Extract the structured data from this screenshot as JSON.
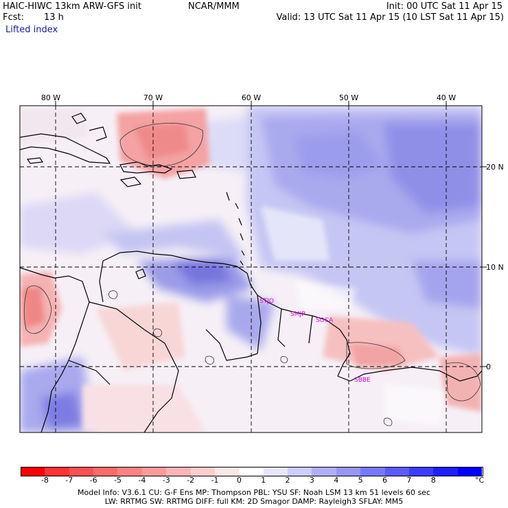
{
  "header": {
    "model": "HAIC-HIWC 13km ARW-GFS init",
    "org": "NCAR/MMM",
    "init": "Init: 00 UTC Sat 11 Apr 15",
    "fcst_label": "Fcst:",
    "fcst_value": "13 h",
    "valid": "Valid: 13 UTC Sat 11 Apr 15 (10 LST Sat 11 Apr 15)",
    "field": "Lifted index"
  },
  "axes": {
    "lon_labels": [
      "80 W",
      "70 W",
      "60 W",
      "50 W",
      "40 W"
    ],
    "lat_labels": [
      "20 N",
      "10 N",
      "0"
    ]
  },
  "stations": [
    "STJO",
    "SMJP",
    "SOCA",
    "SBBE"
  ],
  "colorbar": {
    "unit": "°C",
    "ticks": [
      "-8",
      "-7",
      "-6",
      "-5",
      "-4",
      "-3",
      "-2",
      "-1",
      "0",
      "1",
      "2",
      "3",
      "4",
      "5",
      "6",
      "7",
      "8"
    ],
    "colors": [
      "#ff0000",
      "#ff3333",
      "#ff5050",
      "#ff6a6a",
      "#ff8282",
      "#ff9a9a",
      "#ffb4b4",
      "#ffcdcd",
      "#ffe6e6",
      "#ffffff",
      "#e6e6ff",
      "#cdcdff",
      "#b0b0fa",
      "#9696f5",
      "#7878ff",
      "#5a5aff",
      "#3c3cff",
      "#1e1eff",
      "#0000ff"
    ]
  },
  "model_info": {
    "line1": "Model Info: V3.6.1     CU: G-F Ens MP: Thompson     PBL: YSU      SF: Noah LSM     13 km    51 levels    60 sec",
    "line2": "LW: RRTMG    SW: RRTMG   DIFF: full    KM: 2D Smagor DAMP: Rayleigh3  SFLAY: MM5"
  }
}
